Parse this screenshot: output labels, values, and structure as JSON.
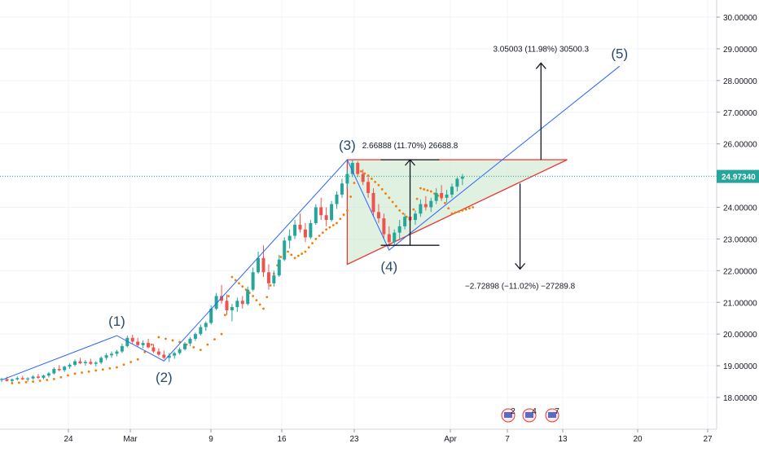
{
  "chart_data": {
    "type": "candlestick",
    "x_ticks": [
      "24",
      "Mar",
      "9",
      "16",
      "23",
      "Apr",
      "7",
      "13",
      "20",
      "27"
    ],
    "y_ticks": [
      "18.00000",
      "19.00000",
      "20.00000",
      "21.00000",
      "22.00000",
      "23.00000",
      "24.00000",
      "25.00000",
      "26.00000",
      "27.00000",
      "28.00000",
      "29.00000",
      "30.00000"
    ],
    "ylim": [
      17.4,
      30.5
    ],
    "last_price": "24.97340",
    "colors": {
      "up": "#26a69a",
      "down": "#ef5350",
      "wave_line": "#2962ff",
      "triangle_fill": "#c8e6c9",
      "triangle_edge": "#e53935",
      "sar_dots": "#f57c00",
      "measure_arrow": "#131722",
      "price_tag": "#26a69a",
      "wave_label": "#2a4a6b"
    },
    "candles": [
      [
        18.55,
        18.62,
        18.48,
        18.58
      ],
      [
        18.58,
        18.65,
        18.5,
        18.52
      ],
      [
        18.52,
        18.6,
        18.46,
        18.57
      ],
      [
        18.57,
        18.66,
        18.53,
        18.61
      ],
      [
        18.61,
        18.68,
        18.55,
        18.57
      ],
      [
        18.57,
        18.64,
        18.5,
        18.6
      ],
      [
        18.6,
        18.7,
        18.56,
        18.66
      ],
      [
        18.66,
        18.74,
        18.58,
        18.62
      ],
      [
        18.62,
        18.72,
        18.57,
        18.69
      ],
      [
        18.69,
        18.8,
        18.63,
        18.76
      ],
      [
        18.76,
        18.95,
        18.72,
        18.9
      ],
      [
        18.9,
        19.02,
        18.82,
        18.86
      ],
      [
        18.86,
        19.0,
        18.8,
        18.97
      ],
      [
        18.97,
        19.08,
        18.9,
        19.03
      ],
      [
        19.03,
        19.2,
        18.98,
        19.14
      ],
      [
        19.14,
        19.25,
        19.05,
        19.08
      ],
      [
        19.08,
        19.18,
        19.0,
        19.12
      ],
      [
        19.12,
        19.22,
        19.03,
        19.06
      ],
      [
        19.06,
        19.15,
        18.98,
        19.1
      ],
      [
        19.1,
        19.3,
        19.05,
        19.25
      ],
      [
        19.25,
        19.4,
        19.18,
        19.33
      ],
      [
        19.33,
        19.45,
        19.25,
        19.38
      ],
      [
        19.38,
        19.5,
        19.3,
        19.45
      ],
      [
        19.45,
        19.7,
        19.4,
        19.62
      ],
      [
        19.62,
        19.95,
        19.58,
        19.88
      ],
      [
        19.88,
        19.98,
        19.7,
        19.76
      ],
      [
        19.76,
        19.88,
        19.6,
        19.65
      ],
      [
        19.65,
        19.8,
        19.55,
        19.72
      ],
      [
        19.72,
        19.85,
        19.55,
        19.58
      ],
      [
        19.58,
        19.68,
        19.4,
        19.45
      ],
      [
        19.45,
        19.55,
        19.3,
        19.35
      ],
      [
        19.35,
        19.48,
        19.2,
        19.25
      ],
      [
        19.25,
        19.4,
        19.12,
        19.32
      ],
      [
        19.32,
        19.45,
        19.22,
        19.4
      ],
      [
        19.4,
        19.58,
        19.35,
        19.52
      ],
      [
        19.52,
        19.75,
        19.48,
        19.7
      ],
      [
        19.7,
        19.9,
        19.62,
        19.85
      ],
      [
        19.85,
        20.05,
        19.78,
        20.0
      ],
      [
        20.0,
        20.3,
        19.95,
        20.22
      ],
      [
        20.22,
        20.4,
        20.1,
        20.35
      ],
      [
        20.35,
        20.9,
        20.3,
        20.8
      ],
      [
        20.8,
        21.3,
        20.75,
        21.2
      ],
      [
        21.2,
        21.55,
        20.95,
        21.05
      ],
      [
        21.05,
        21.25,
        20.6,
        20.75
      ],
      [
        20.75,
        20.95,
        20.4,
        20.85
      ],
      [
        20.85,
        21.15,
        20.7,
        21.05
      ],
      [
        21.05,
        21.2,
        20.8,
        20.95
      ],
      [
        20.95,
        21.5,
        20.9,
        21.4
      ],
      [
        21.4,
        22.1,
        21.35,
        21.95
      ],
      [
        21.95,
        22.6,
        21.9,
        22.4
      ],
      [
        22.4,
        22.8,
        21.8,
        21.95
      ],
      [
        21.95,
        22.2,
        21.4,
        21.6
      ],
      [
        21.6,
        22.0,
        21.5,
        21.85
      ],
      [
        21.85,
        22.5,
        21.8,
        22.35
      ],
      [
        22.35,
        23.05,
        22.3,
        22.95
      ],
      [
        22.95,
        23.3,
        22.7,
        23.1
      ],
      [
        23.1,
        23.6,
        23.0,
        23.45
      ],
      [
        23.45,
        23.8,
        23.2,
        23.3
      ],
      [
        23.3,
        23.5,
        22.9,
        23.05
      ],
      [
        23.05,
        23.6,
        23.0,
        23.5
      ],
      [
        23.5,
        24.1,
        23.45,
        24.0
      ],
      [
        24.0,
        24.3,
        23.6,
        23.75
      ],
      [
        23.75,
        24.0,
        23.4,
        23.6
      ],
      [
        23.6,
        24.2,
        23.55,
        24.1
      ],
      [
        24.1,
        24.5,
        23.95,
        24.4
      ],
      [
        24.4,
        24.9,
        24.3,
        24.75
      ],
      [
        24.75,
        25.2,
        24.6,
        25.05
      ],
      [
        25.05,
        25.5,
        24.95,
        25.4
      ],
      [
        25.4,
        25.45,
        24.95,
        25.05
      ],
      [
        25.05,
        25.2,
        24.7,
        24.8
      ],
      [
        24.8,
        24.95,
        24.3,
        24.45
      ],
      [
        24.45,
        24.6,
        23.7,
        23.85
      ],
      [
        23.85,
        24.1,
        23.5,
        23.65
      ],
      [
        23.65,
        23.8,
        23.0,
        23.15
      ],
      [
        23.15,
        23.4,
        22.75,
        22.9
      ],
      [
        22.9,
        23.3,
        22.8,
        23.2
      ],
      [
        23.2,
        23.6,
        23.0,
        23.4
      ],
      [
        23.4,
        23.8,
        23.3,
        23.7
      ],
      [
        23.7,
        24.0,
        23.5,
        23.6
      ],
      [
        23.6,
        23.9,
        23.45,
        23.8
      ],
      [
        23.8,
        24.25,
        23.7,
        24.1
      ],
      [
        24.1,
        24.35,
        23.9,
        24.0
      ],
      [
        24.0,
        24.3,
        23.85,
        24.2
      ],
      [
        24.2,
        24.6,
        24.1,
        24.45
      ],
      [
        24.45,
        24.7,
        24.2,
        24.3
      ],
      [
        24.3,
        24.55,
        24.15,
        24.4
      ],
      [
        24.4,
        24.75,
        24.3,
        24.65
      ],
      [
        24.65,
        24.95,
        24.5,
        24.9
      ],
      [
        24.9,
        25.05,
        24.7,
        24.97
      ]
    ],
    "sar": [
      [
        2,
        18.45
      ],
      [
        6,
        18.5
      ],
      [
        10,
        18.58
      ],
      [
        14,
        18.75
      ],
      [
        18,
        18.85
      ],
      [
        22,
        18.95
      ],
      [
        26,
        19.2
      ],
      [
        30,
        19.9
      ],
      [
        34,
        19.75
      ],
      [
        38,
        19.5
      ],
      [
        42,
        20.0
      ],
      [
        44,
        21.8
      ],
      [
        46,
        21.5
      ],
      [
        48,
        21.2
      ],
      [
        50,
        20.8
      ],
      [
        52,
        21.9
      ],
      [
        54,
        22.7
      ],
      [
        56,
        22.4
      ],
      [
        58,
        22.6
      ],
      [
        60,
        23.0
      ],
      [
        62,
        23.3
      ],
      [
        64,
        23.5
      ],
      [
        66,
        23.9
      ],
      [
        68,
        25.2
      ],
      [
        70,
        25.0
      ],
      [
        72,
        24.7
      ],
      [
        74,
        24.3
      ],
      [
        76,
        23.9
      ],
      [
        78,
        23.6
      ],
      [
        80,
        24.6
      ],
      [
        82,
        24.5
      ],
      [
        84,
        24.3
      ],
      [
        86,
        23.8
      ],
      [
        88,
        23.9
      ],
      [
        90,
        24.0
      ]
    ],
    "waves": [
      {
        "label": "(1)",
        "x": 22,
        "y": 19.95
      },
      {
        "label": "(2)",
        "x": 31,
        "y": 19.15
      },
      {
        "label": "(3)",
        "x": 66,
        "y": 25.5
      },
      {
        "label": "(4)",
        "x": 74,
        "y": 22.65
      },
      {
        "label": "(5)",
        "x": 118,
        "y": 28.45
      }
    ],
    "wave_start": {
      "x": 0,
      "y": 18.55
    },
    "triangle": {
      "top_left": {
        "x": 66,
        "y": 25.5
      },
      "top_right": {
        "x": 108,
        "y": 25.5
      },
      "bottom_left": {
        "x": 66,
        "y": 22.2
      }
    },
    "measures": [
      {
        "label": "2.66888 (11.70%) 26688.8",
        "x": 78,
        "from": 22.8,
        "to": 25.5
      },
      {
        "label": "3.05003 (11.98%) 30500.3",
        "x": 103,
        "from": 25.5,
        "to": 28.55
      },
      {
        "label": "−2.72898 (−11.02%) −27289.8",
        "x": 99,
        "from": 24.75,
        "to": 22.05
      }
    ],
    "badge_text": [
      "2",
      "4",
      "7"
    ]
  }
}
